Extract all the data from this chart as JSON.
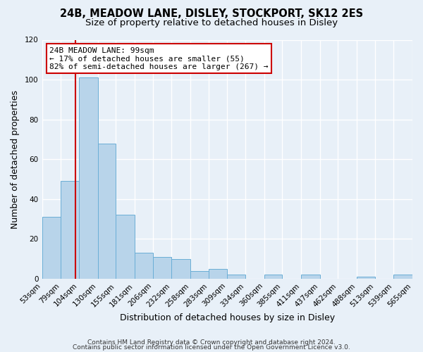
{
  "title1": "24B, MEADOW LANE, DISLEY, STOCKPORT, SK12 2ES",
  "title2": "Size of property relative to detached houses in Disley",
  "xlabel": "Distribution of detached houses by size in Disley",
  "ylabel": "Number of detached properties",
  "bin_edges": [
    53,
    79,
    104,
    130,
    155,
    181,
    206,
    232,
    258,
    283,
    309,
    334,
    360,
    385,
    411,
    437,
    462,
    488,
    513,
    539,
    565
  ],
  "bar_heights": [
    31,
    49,
    101,
    68,
    32,
    13,
    11,
    10,
    4,
    5,
    2,
    0,
    2,
    0,
    2,
    0,
    0,
    1,
    0,
    2
  ],
  "bar_color": "#b8d4ea",
  "bar_edge_color": "#6aaed6",
  "property_size": 99,
  "red_line_color": "#cc0000",
  "ylim": [
    0,
    120
  ],
  "yticks": [
    0,
    20,
    40,
    60,
    80,
    100,
    120
  ],
  "annotation_line1": "24B MEADOW LANE: 99sqm",
  "annotation_line2": "← 17% of detached houses are smaller (55)",
  "annotation_line3": "82% of semi-detached houses are larger (267) →",
  "annotation_box_edgecolor": "#cc0000",
  "annotation_box_facecolor": "#ffffff",
  "footer1": "Contains HM Land Registry data © Crown copyright and database right 2024.",
  "footer2": "Contains public sector information licensed under the Open Government Licence v3.0.",
  "fig_background_color": "#e8f0f8",
  "plot_background_color": "#e8f0f8",
  "grid_color": "#ffffff",
  "title1_fontsize": 10.5,
  "title2_fontsize": 9.5,
  "axis_label_fontsize": 9,
  "tick_label_fontsize": 7.5,
  "annotation_fontsize": 8,
  "footer_fontsize": 6.5
}
